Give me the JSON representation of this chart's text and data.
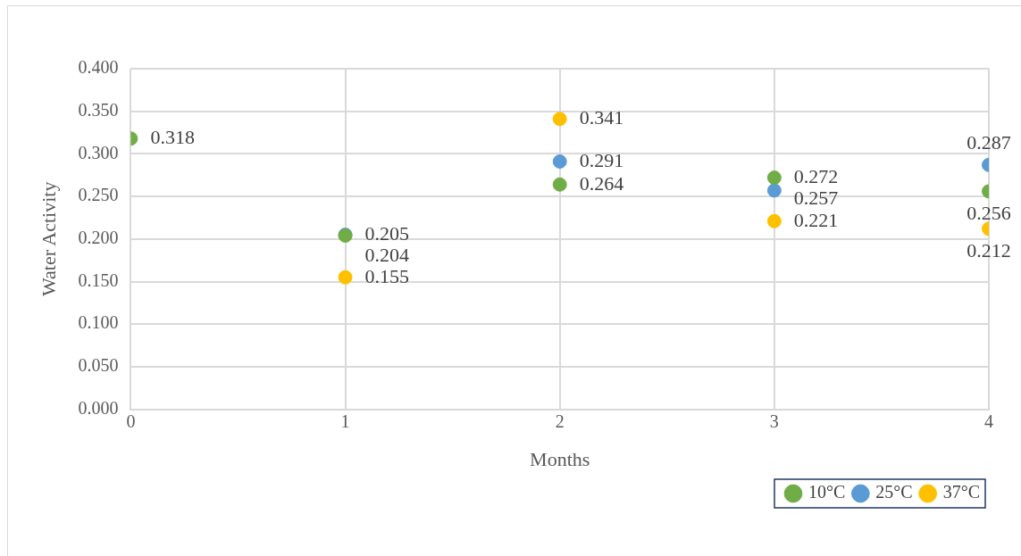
{
  "chart_data": {
    "type": "scatter",
    "xlabel": "Months",
    "ylabel": "Water Activity",
    "xlim": [
      0,
      4
    ],
    "xticks": [
      0,
      1,
      2,
      3,
      4
    ],
    "ylim": [
      0,
      0.4
    ],
    "yticks": [
      {
        "value": 0,
        "label": "0.000"
      },
      {
        "value": 0.05,
        "label": "0.050"
      },
      {
        "value": 0.1,
        "label": "0.100"
      },
      {
        "value": 0.15,
        "label": "0.150"
      },
      {
        "value": 0.2,
        "label": "0.200"
      },
      {
        "value": 0.25,
        "label": "0.250"
      },
      {
        "value": 0.3,
        "label": "0.300"
      },
      {
        "value": 0.35,
        "label": "0.350"
      },
      {
        "value": 0.4,
        "label": "0.400"
      }
    ],
    "series": [
      {
        "name": "10°C",
        "color": "#70ad47",
        "x": [
          0,
          1,
          2,
          3,
          4
        ],
        "values": [
          0.318,
          0.204,
          0.264,
          0.272,
          0.256
        ]
      },
      {
        "name": "25°C",
        "color": "#5b9bd5",
        "x": [
          1,
          2,
          3,
          4
        ],
        "values": [
          0.205,
          0.291,
          0.257,
          0.287
        ]
      },
      {
        "name": "37°C",
        "color": "#ffc000",
        "x": [
          1,
          2,
          3,
          4
        ],
        "values": [
          0.155,
          0.341,
          0.221,
          0.212
        ]
      }
    ],
    "data_labels": true,
    "grid": true,
    "legend": "bottom right",
    "marker": "circle"
  }
}
